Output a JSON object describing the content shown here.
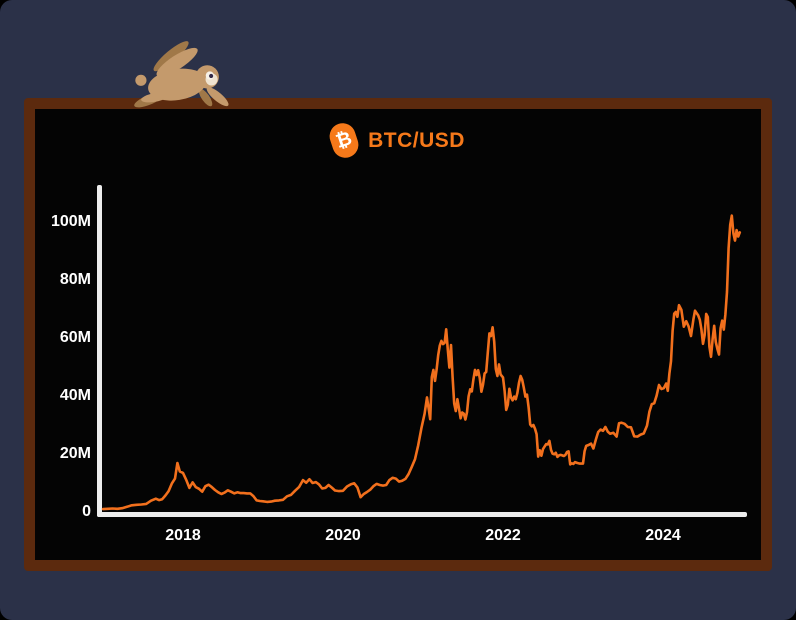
{
  "theme": {
    "page_bg": "#2b3148",
    "frame": "#5c2a0e",
    "board_bg": "#040404",
    "accent": "#f6791a",
    "line": "#f2701d",
    "axis": "#ededed",
    "tick_text": "#ffffff",
    "rabbit_body": "#c49a6c",
    "rabbit_shade": "#a07848",
    "rabbit_cream": "#efe3d0",
    "rabbit_eye": "#342a47"
  },
  "header": {
    "title": "BTC/USD",
    "icon": "bitcoin-icon",
    "icon_glyph": "₿"
  },
  "mascot": {
    "name": "running-rabbit"
  },
  "chart_data": {
    "type": "line",
    "title": "BTC/USD",
    "xlabel": "",
    "ylabel": "",
    "x_unit": "year",
    "xlim": [
      2017,
      2025.05
    ],
    "ylim": [
      0,
      112
    ],
    "grid": false,
    "legend": "none",
    "series_name": "BTC/USD price",
    "yticks": [
      {
        "label": "100M",
        "value": 100
      },
      {
        "label": "80M",
        "value": 80
      },
      {
        "label": "60M",
        "value": 60
      },
      {
        "label": "40M",
        "value": 40
      },
      {
        "label": "20M",
        "value": 20
      },
      {
        "label": "0",
        "value": 0
      }
    ],
    "xticks": [
      {
        "label": "2018",
        "value": 2018
      },
      {
        "label": "2020",
        "value": 2020
      },
      {
        "label": "2022",
        "value": 2022
      },
      {
        "label": "2024",
        "value": 2024
      }
    ],
    "points": [
      [
        2017.0,
        1.0
      ],
      [
        2017.06,
        1.1
      ],
      [
        2017.12,
        1.2
      ],
      [
        2017.18,
        1.1
      ],
      [
        2017.24,
        1.3
      ],
      [
        2017.3,
        1.8
      ],
      [
        2017.36,
        2.3
      ],
      [
        2017.42,
        2.5
      ],
      [
        2017.48,
        2.6
      ],
      [
        2017.54,
        2.8
      ],
      [
        2017.6,
        3.9
      ],
      [
        2017.66,
        4.6
      ],
      [
        2017.7,
        4.1
      ],
      [
        2017.74,
        4.4
      ],
      [
        2017.78,
        5.7
      ],
      [
        2017.82,
        7.2
      ],
      [
        2017.86,
        9.8
      ],
      [
        2017.9,
        11.5
      ],
      [
        2017.93,
        16.9
      ],
      [
        2017.96,
        14.0
      ],
      [
        2018.0,
        13.5
      ],
      [
        2018.04,
        11.1
      ],
      [
        2018.08,
        8.3
      ],
      [
        2018.12,
        10.2
      ],
      [
        2018.16,
        8.6
      ],
      [
        2018.2,
        8.0
      ],
      [
        2018.24,
        7.0
      ],
      [
        2018.28,
        8.9
      ],
      [
        2018.32,
        9.4
      ],
      [
        2018.36,
        8.6
      ],
      [
        2018.4,
        7.6
      ],
      [
        2018.44,
        6.8
      ],
      [
        2018.48,
        6.2
      ],
      [
        2018.52,
        6.7
      ],
      [
        2018.56,
        7.5
      ],
      [
        2018.6,
        7.0
      ],
      [
        2018.64,
        6.4
      ],
      [
        2018.68,
        6.8
      ],
      [
        2018.72,
        6.5
      ],
      [
        2018.76,
        6.5
      ],
      [
        2018.8,
        6.4
      ],
      [
        2018.84,
        6.4
      ],
      [
        2018.88,
        5.5
      ],
      [
        2018.92,
        4.0
      ],
      [
        2018.96,
        3.8
      ],
      [
        2019.0,
        3.7
      ],
      [
        2019.05,
        3.5
      ],
      [
        2019.1,
        3.6
      ],
      [
        2019.15,
        3.9
      ],
      [
        2019.2,
        4.0
      ],
      [
        2019.25,
        4.2
      ],
      [
        2019.3,
        5.4
      ],
      [
        2019.35,
        5.9
      ],
      [
        2019.4,
        7.3
      ],
      [
        2019.45,
        8.6
      ],
      [
        2019.5,
        11.0
      ],
      [
        2019.54,
        10.1
      ],
      [
        2019.58,
        11.3
      ],
      [
        2019.62,
        10.0
      ],
      [
        2019.66,
        10.3
      ],
      [
        2019.7,
        9.5
      ],
      [
        2019.74,
        8.1
      ],
      [
        2019.78,
        8.3
      ],
      [
        2019.82,
        9.3
      ],
      [
        2019.86,
        8.4
      ],
      [
        2019.9,
        7.4
      ],
      [
        2019.95,
        7.2
      ],
      [
        2020.0,
        7.3
      ],
      [
        2020.05,
        8.8
      ],
      [
        2020.1,
        9.6
      ],
      [
        2020.14,
        9.9
      ],
      [
        2020.18,
        8.5
      ],
      [
        2020.22,
        5.1
      ],
      [
        2020.26,
        6.2
      ],
      [
        2020.3,
        6.9
      ],
      [
        2020.34,
        7.7
      ],
      [
        2020.38,
        8.9
      ],
      [
        2020.42,
        9.7
      ],
      [
        2020.46,
        9.3
      ],
      [
        2020.5,
        9.1
      ],
      [
        2020.54,
        9.3
      ],
      [
        2020.58,
        11.0
      ],
      [
        2020.62,
        11.8
      ],
      [
        2020.66,
        11.5
      ],
      [
        2020.7,
        10.5
      ],
      [
        2020.74,
        10.8
      ],
      [
        2020.78,
        11.4
      ],
      [
        2020.82,
        13.1
      ],
      [
        2020.86,
        15.6
      ],
      [
        2020.9,
        18.2
      ],
      [
        2020.94,
        23.0
      ],
      [
        2020.98,
        28.9
      ],
      [
        2021.02,
        33.9
      ],
      [
        2021.05,
        39.5
      ],
      [
        2021.07,
        35.8
      ],
      [
        2021.09,
        32.0
      ],
      [
        2021.11,
        46.5
      ],
      [
        2021.13,
        49.0
      ],
      [
        2021.15,
        45.2
      ],
      [
        2021.17,
        49.1
      ],
      [
        2021.19,
        54.1
      ],
      [
        2021.21,
        57.4
      ],
      [
        2021.23,
        59.0
      ],
      [
        2021.25,
        57.9
      ],
      [
        2021.27,
        58.3
      ],
      [
        2021.29,
        63.0
      ],
      [
        2021.31,
        56.0
      ],
      [
        2021.33,
        49.8
      ],
      [
        2021.35,
        57.6
      ],
      [
        2021.37,
        46.5
      ],
      [
        2021.39,
        37.4
      ],
      [
        2021.41,
        34.8
      ],
      [
        2021.43,
        38.9
      ],
      [
        2021.45,
        35.7
      ],
      [
        2021.47,
        32.3
      ],
      [
        2021.49,
        34.3
      ],
      [
        2021.51,
        33.9
      ],
      [
        2021.53,
        31.9
      ],
      [
        2021.55,
        34.4
      ],
      [
        2021.57,
        39.9
      ],
      [
        2021.59,
        42.3
      ],
      [
        2021.61,
        41.6
      ],
      [
        2021.63,
        45.7
      ],
      [
        2021.65,
        49.0
      ],
      [
        2021.67,
        47.2
      ],
      [
        2021.69,
        48.9
      ],
      [
        2021.71,
        46.1
      ],
      [
        2021.73,
        41.5
      ],
      [
        2021.75,
        43.9
      ],
      [
        2021.77,
        47.8
      ],
      [
        2021.79,
        48.3
      ],
      [
        2021.81,
        55.0
      ],
      [
        2021.83,
        61.6
      ],
      [
        2021.85,
        60.7
      ],
      [
        2021.87,
        63.7
      ],
      [
        2021.89,
        58.8
      ],
      [
        2021.91,
        49.3
      ],
      [
        2021.93,
        46.9
      ],
      [
        2021.95,
        50.9
      ],
      [
        2021.97,
        47.4
      ],
      [
        2022.0,
        46.4
      ],
      [
        2022.02,
        41.8
      ],
      [
        2022.04,
        35.2
      ],
      [
        2022.06,
        37.0
      ],
      [
        2022.08,
        42.5
      ],
      [
        2022.1,
        39.5
      ],
      [
        2022.12,
        38.5
      ],
      [
        2022.14,
        39.8
      ],
      [
        2022.16,
        38.9
      ],
      [
        2022.18,
        41.1
      ],
      [
        2022.2,
        44.6
      ],
      [
        2022.22,
        46.9
      ],
      [
        2022.24,
        45.6
      ],
      [
        2022.26,
        42.9
      ],
      [
        2022.28,
        39.8
      ],
      [
        2022.3,
        40.5
      ],
      [
        2022.32,
        36.1
      ],
      [
        2022.34,
        30.2
      ],
      [
        2022.36,
        29.5
      ],
      [
        2022.38,
        30.0
      ],
      [
        2022.4,
        28.7
      ],
      [
        2022.42,
        26.8
      ],
      [
        2022.44,
        19.1
      ],
      [
        2022.46,
        21.3
      ],
      [
        2022.48,
        19.4
      ],
      [
        2022.5,
        21.7
      ],
      [
        2022.52,
        22.6
      ],
      [
        2022.54,
        23.4
      ],
      [
        2022.56,
        23.3
      ],
      [
        2022.58,
        24.5
      ],
      [
        2022.6,
        21.4
      ],
      [
        2022.62,
        20.1
      ],
      [
        2022.64,
        19.9
      ],
      [
        2022.66,
        20.4
      ],
      [
        2022.68,
        19.0
      ],
      [
        2022.7,
        19.5
      ],
      [
        2022.72,
        19.7
      ],
      [
        2022.74,
        19.5
      ],
      [
        2022.76,
        19.3
      ],
      [
        2022.78,
        19.7
      ],
      [
        2022.8,
        20.7
      ],
      [
        2022.82,
        20.9
      ],
      [
        2022.84,
        16.4
      ],
      [
        2022.86,
        16.8
      ],
      [
        2022.88,
        16.6
      ],
      [
        2022.9,
        17.2
      ],
      [
        2022.93,
        16.9
      ],
      [
        2022.96,
        16.7
      ],
      [
        2023.0,
        16.7
      ],
      [
        2023.02,
        21.0
      ],
      [
        2023.04,
        22.8
      ],
      [
        2023.07,
        23.1
      ],
      [
        2023.1,
        23.6
      ],
      [
        2023.13,
        21.9
      ],
      [
        2023.16,
        24.9
      ],
      [
        2023.19,
        27.6
      ],
      [
        2023.22,
        28.4
      ],
      [
        2023.25,
        28.0
      ],
      [
        2023.28,
        29.3
      ],
      [
        2023.31,
        27.7
      ],
      [
        2023.34,
        27.0
      ],
      [
        2023.38,
        27.3
      ],
      [
        2023.42,
        26.0
      ],
      [
        2023.45,
        30.6
      ],
      [
        2023.48,
        30.8
      ],
      [
        2023.52,
        30.4
      ],
      [
        2023.56,
        29.3
      ],
      [
        2023.6,
        29.2
      ],
      [
        2023.64,
        26.1
      ],
      [
        2023.68,
        26.0
      ],
      [
        2023.72,
        26.7
      ],
      [
        2023.76,
        27.1
      ],
      [
        2023.8,
        29.8
      ],
      [
        2023.83,
        34.6
      ],
      [
        2023.86,
        37.2
      ],
      [
        2023.89,
        37.5
      ],
      [
        2023.92,
        40.1
      ],
      [
        2023.95,
        43.8
      ],
      [
        2023.98,
        42.4
      ],
      [
        2024.01,
        42.7
      ],
      [
        2024.04,
        44.3
      ],
      [
        2024.06,
        41.8
      ],
      [
        2024.08,
        47.8
      ],
      [
        2024.1,
        52.0
      ],
      [
        2024.12,
        62.5
      ],
      [
        2024.14,
        68.4
      ],
      [
        2024.16,
        69.0
      ],
      [
        2024.18,
        67.3
      ],
      [
        2024.2,
        71.3
      ],
      [
        2024.23,
        69.7
      ],
      [
        2024.26,
        63.9
      ],
      [
        2024.29,
        65.8
      ],
      [
        2024.32,
        64.0
      ],
      [
        2024.35,
        60.7
      ],
      [
        2024.38,
        66.4
      ],
      [
        2024.4,
        69.4
      ],
      [
        2024.42,
        68.6
      ],
      [
        2024.44,
        67.8
      ],
      [
        2024.46,
        66.3
      ],
      [
        2024.48,
        63.0
      ],
      [
        2024.5,
        58.0
      ],
      [
        2024.52,
        61.0
      ],
      [
        2024.54,
        68.3
      ],
      [
        2024.56,
        67.2
      ],
      [
        2024.58,
        57.0
      ],
      [
        2024.6,
        53.5
      ],
      [
        2024.62,
        59.6
      ],
      [
        2024.64,
        64.2
      ],
      [
        2024.66,
        58.6
      ],
      [
        2024.68,
        56.2
      ],
      [
        2024.7,
        54.3
      ],
      [
        2024.72,
        63.4
      ],
      [
        2024.74,
        66.0
      ],
      [
        2024.76,
        62.9
      ],
      [
        2024.78,
        68.2
      ],
      [
        2024.8,
        75.9
      ],
      [
        2024.82,
        91.0
      ],
      [
        2024.84,
        99.0
      ],
      [
        2024.86,
        102.2
      ],
      [
        2024.88,
        96.1
      ],
      [
        2024.9,
        93.6
      ],
      [
        2024.92,
        97.2
      ],
      [
        2024.94,
        95.0
      ],
      [
        2024.96,
        96.4
      ]
    ]
  }
}
